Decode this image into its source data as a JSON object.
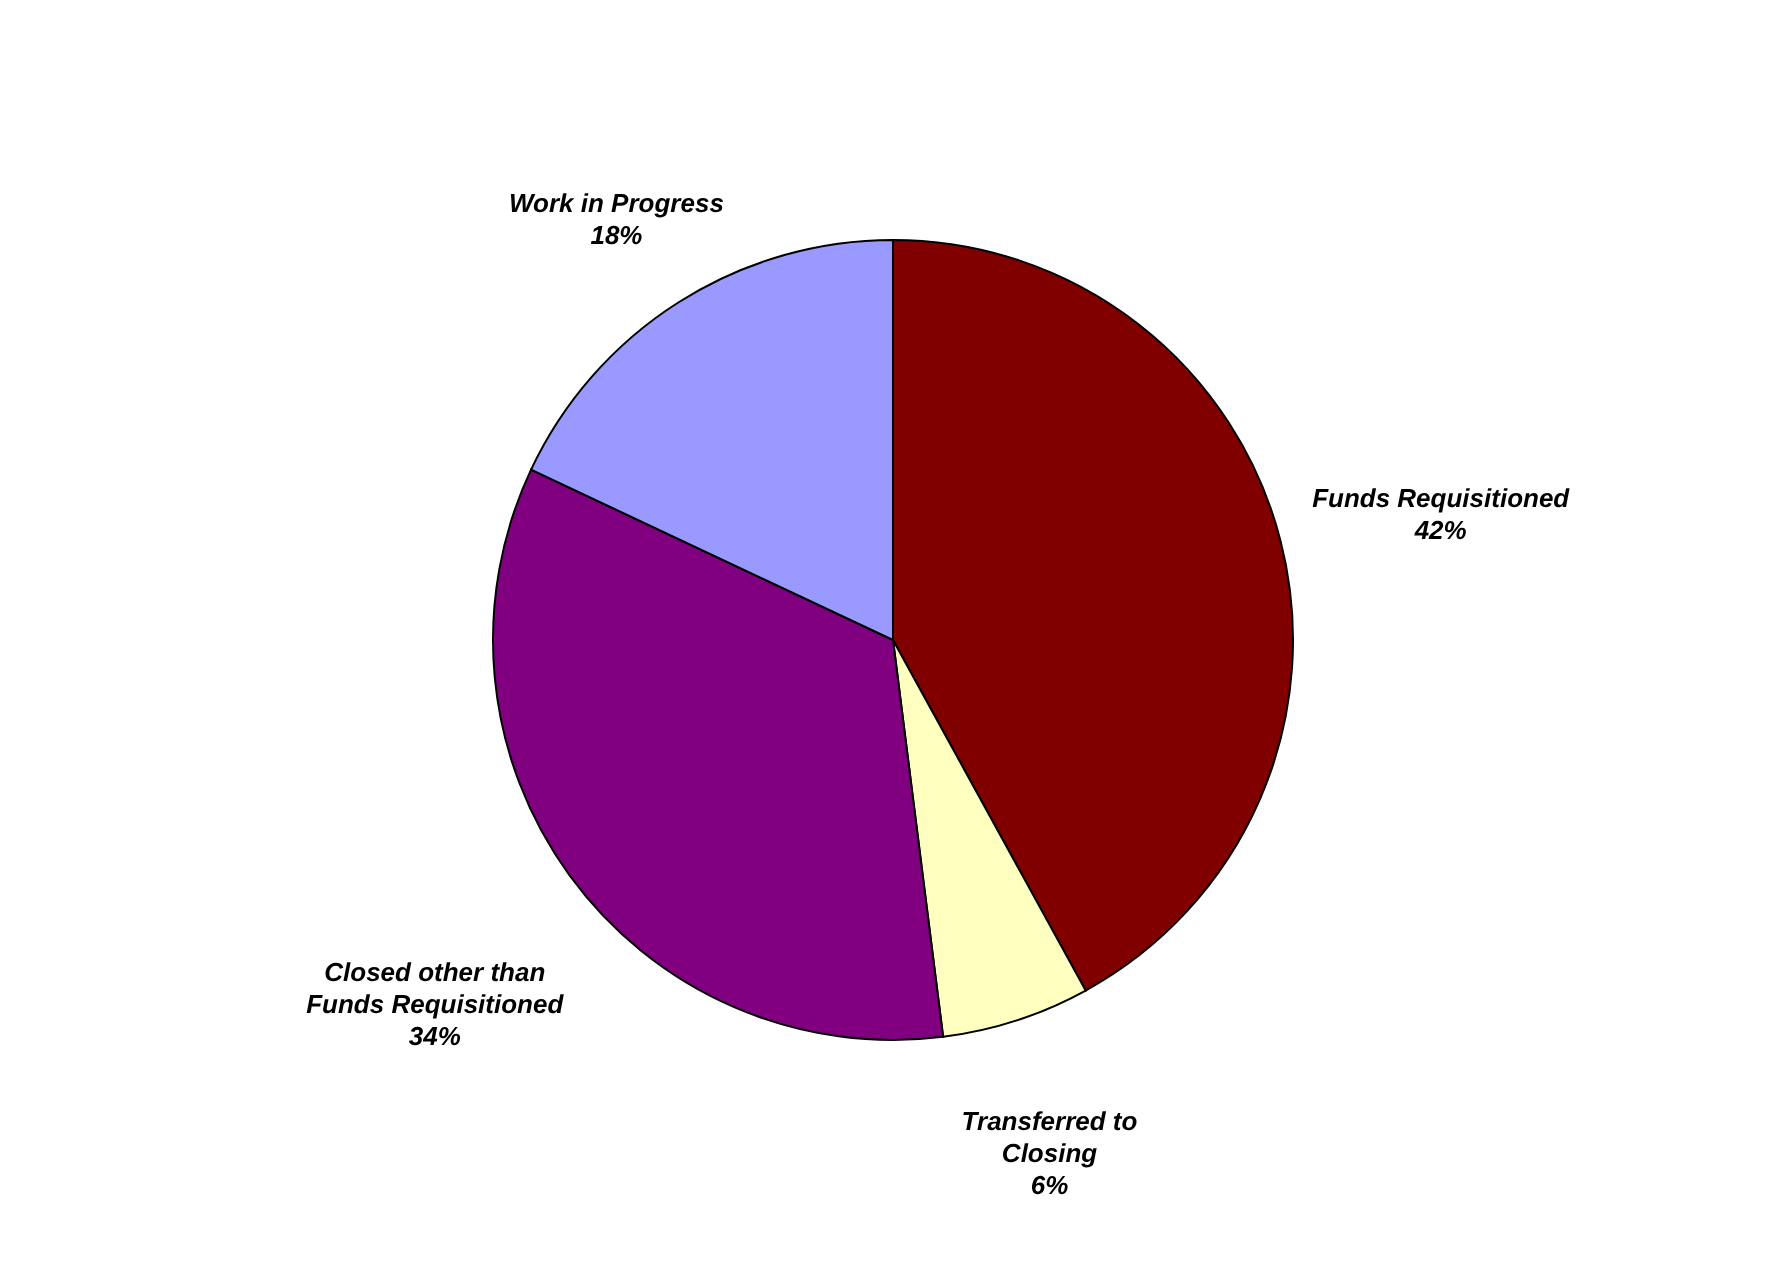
{
  "chart_data": {
    "type": "pie",
    "categories": [
      "Funds Requisitioned",
      "Transferred to Closing",
      "Closed other than Funds Requisitioned",
      "Work in Progress"
    ],
    "values": [
      42,
      6,
      34,
      18
    ],
    "colors": [
      "#800000",
      "#ffffc0",
      "#800080",
      "#9999ff"
    ],
    "value_labels": [
      "42%",
      "6%",
      "34%",
      "18%"
    ],
    "legend": false
  }
}
